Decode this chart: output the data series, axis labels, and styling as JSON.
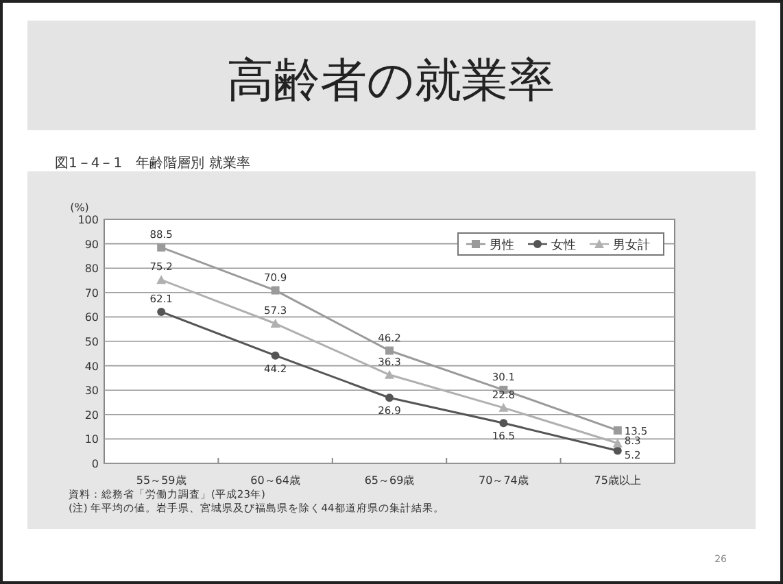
{
  "chart_data": {
    "type": "line",
    "title": "高齢者の就業率",
    "subtitle": "図1－4－1　年齢階層別 就業率",
    "ylabel": "(%)",
    "categories": [
      "55～59歳",
      "60～64歳",
      "65～69歳",
      "70～74歳",
      "75歳以上"
    ],
    "series": [
      {
        "name": "男性",
        "color": "#9a9a9a",
        "marker": "square",
        "values": [
          88.5,
          70.9,
          46.2,
          30.1,
          13.5
        ]
      },
      {
        "name": "女性",
        "color": "#555555",
        "marker": "circle",
        "values": [
          62.1,
          44.2,
          26.9,
          16.5,
          5.2
        ]
      },
      {
        "name": "男女計",
        "color": "#b0b0b0",
        "marker": "triangle",
        "values": [
          75.2,
          57.3,
          36.3,
          22.8,
          8.3
        ]
      }
    ],
    "ylim": [
      0,
      100
    ],
    "yticks": [
      0,
      10,
      20,
      30,
      40,
      50,
      60,
      70,
      80,
      90,
      100
    ],
    "grid": "y",
    "legend": "top right",
    "data_labels": true,
    "line_style": "solid",
    "annotations": [
      "資料：総務省「労働力調査」(平成23年)",
      "(注) 年平均の値。岩手県、宮城県及び福島県を除く44都道府県の集計結果。",
      "26"
    ]
  }
}
